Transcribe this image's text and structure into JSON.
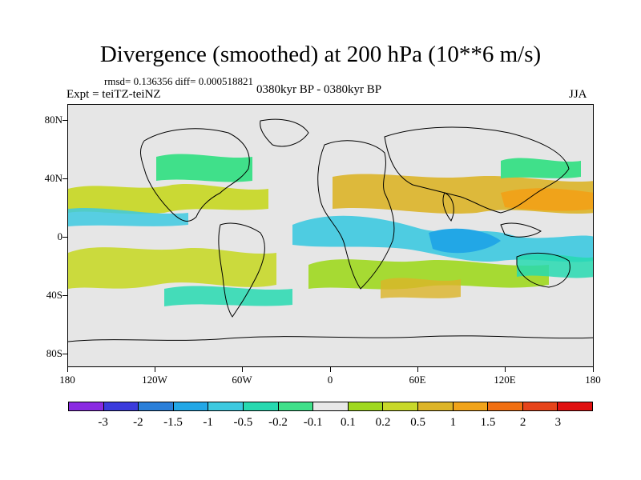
{
  "title": "Divergence (smoothed) at 200 hPa (10**6 m/s)",
  "rmsd_text": "rmsd= 0.136356 diff= 0.000518821",
  "left_label": "Expt = teiTZ-teiNZ",
  "center_label": "0380kyr BP - 0380kyr BP",
  "right_label": "JJA",
  "y_ticks": [
    "80N",
    "40N",
    "0",
    "40S",
    "80S"
  ],
  "x_ticks": [
    "180",
    "120W",
    "60W",
    "0",
    "60E",
    "120E",
    "180"
  ],
  "colorbar": {
    "colors": [
      "#8a2be2",
      "#3b3bdc",
      "#2b7fd9",
      "#22a7e6",
      "#3dc9e0",
      "#27d9b0",
      "#40e08a",
      "#e8e8e8",
      "#9fd81f",
      "#c8d82a",
      "#dcb428",
      "#f0a31a",
      "#f06f12",
      "#e6441a",
      "#e01010"
    ],
    "labels": [
      "-3",
      "-2",
      "-1.5",
      "-1",
      "-0.5",
      "-0.2",
      "-0.1",
      "0.1",
      "0.2",
      "0.5",
      "1",
      "1.5",
      "2",
      "3"
    ]
  },
  "colors": {
    "background": "#e6e6e6",
    "coast": "#000000"
  }
}
